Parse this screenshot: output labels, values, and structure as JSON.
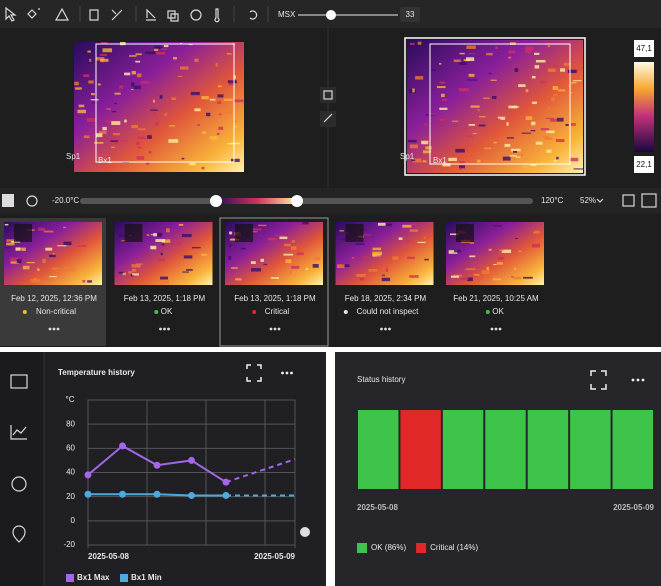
{
  "toolbar": {
    "msx_label": "MSX",
    "msx_value": 33,
    "msx_range": [
      0,
      100
    ]
  },
  "viewer": {
    "left_labels": [
      "Sp1",
      "Bx1"
    ],
    "right_labels": [
      "Sp1",
      "Bx1"
    ],
    "scale_max": "47,1",
    "scale_min": "22,1"
  },
  "range_bar": {
    "min": "-20.0°C",
    "max": "120°C",
    "zoom": "52%"
  },
  "thumbnails": [
    {
      "date": "Feb 12, 2025, 12:36 PM",
      "status": "Non-critical",
      "color": "#e8c42c",
      "selected": true
    },
    {
      "date": "Feb 13, 2025, 1:18 PM",
      "status": "OK",
      "color": "#3ec44a"
    },
    {
      "date": "Feb 13, 2025, 1:18 PM",
      "status": "Critical",
      "color": "#e02828",
      "outlined": true
    },
    {
      "date": "Feb 18, 2025, 2:34 PM",
      "status": "Could not inspect",
      "color": "#e6e6e6"
    },
    {
      "date": "Feb 21, 2025, 10:25 AM",
      "status": "OK",
      "color": "#3ec44a"
    }
  ],
  "chart_data": [
    {
      "type": "line",
      "title": "Temperature history",
      "y_unit": "°C",
      "x": [
        0,
        1,
        2,
        3,
        4,
        6
      ],
      "xlim": [
        0,
        6
      ],
      "xticks": [
        {
          "value": 0,
          "label": "2025-05-08"
        },
        {
          "value": 6,
          "label": "2025-05-09"
        }
      ],
      "ylim": [
        -20,
        100
      ],
      "yticks": [
        -20,
        0,
        20,
        40,
        60,
        80
      ],
      "grid": true,
      "dashed_from": 4,
      "series": [
        {
          "name": "Bx1 Max",
          "color": "#a466ea",
          "values": [
            38,
            62,
            46,
            50,
            32,
            51
          ]
        },
        {
          "name": "Bx1 Min",
          "color": "#4fa9dc",
          "values": [
            22,
            22,
            22,
            21,
            21,
            21
          ]
        }
      ]
    },
    {
      "type": "status",
      "title": "Status history",
      "statuses": [
        "OK",
        "Critical",
        "OK",
        "OK",
        "OK",
        "OK",
        "OK"
      ],
      "colors": {
        "OK": "#3ec44a",
        "Critical": "#e02828"
      },
      "xticks": [
        "2025-05-08",
        "2025-05-09"
      ],
      "legend": [
        {
          "label": "OK (86%)",
          "status": "OK"
        },
        {
          "label": "Critical (14%)",
          "status": "Critical"
        }
      ]
    }
  ]
}
